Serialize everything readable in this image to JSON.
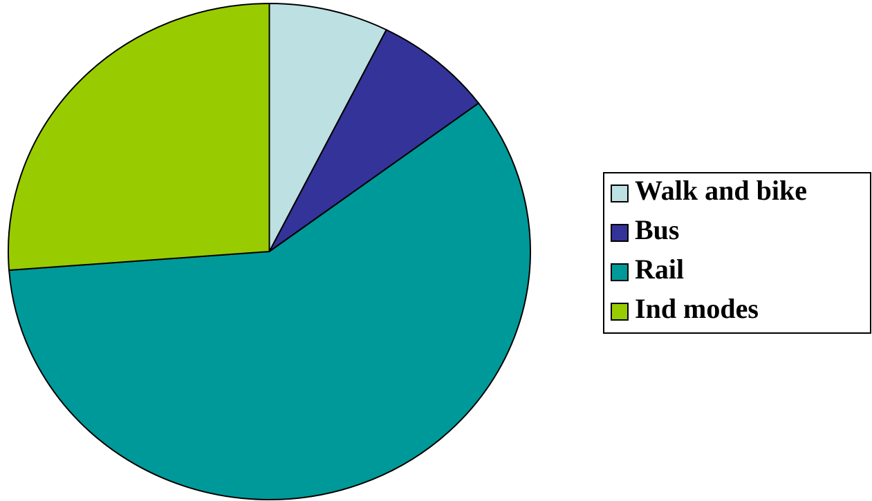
{
  "chart_data": {
    "type": "pie",
    "categories": [
      "Walk and bike",
      "Bus",
      "Rail",
      "Ind modes"
    ],
    "values": [
      7.4,
      7.4,
      59,
      26.2
    ],
    "colors": [
      "#bde0e2",
      "#333399",
      "#009999",
      "#99cc00"
    ],
    "legend": "right"
  }
}
